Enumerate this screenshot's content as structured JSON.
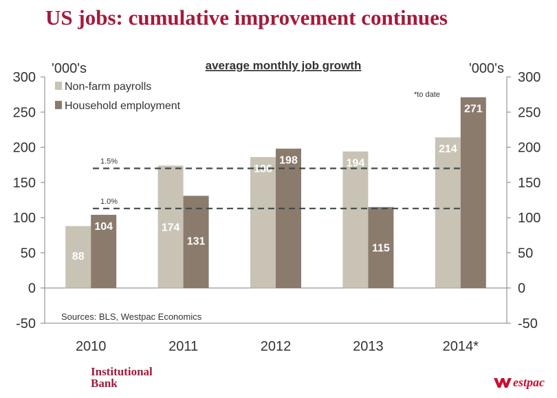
{
  "title": "US jobs: cumulative improvement continues",
  "chart_data": {
    "type": "bar",
    "title": "average monthly job growth",
    "ylabel_left": "'000's",
    "ylabel_right": "'000's",
    "ylim": [
      -50,
      300
    ],
    "yticks": [
      -50,
      0,
      50,
      100,
      150,
      200,
      250,
      300
    ],
    "categories": [
      "2010",
      "2011",
      "2012",
      "2013",
      "2014*"
    ],
    "series": [
      {
        "name": "Non-farm payrolls",
        "color": "#c8c3b4",
        "values": [
          88,
          174,
          186,
          194,
          214
        ]
      },
      {
        "name": "Household employment",
        "color": "#8a7b6d",
        "values": [
          104,
          131,
          198,
          115,
          271
        ]
      }
    ],
    "reference_lines": [
      {
        "label": "1.5%",
        "value": 170
      },
      {
        "label": "1.0%",
        "value": 113
      }
    ],
    "note": "*to date",
    "source": "Sources: BLS, Westpac Economics",
    "legend_position": "top-left"
  },
  "footer": {
    "brand_line1": "Institutional",
    "brand_line2": "Bank",
    "logo_text": "estpac"
  },
  "colors": {
    "accent": "#a6193a",
    "axis": "#808080",
    "dashed": "#3c4a50"
  }
}
